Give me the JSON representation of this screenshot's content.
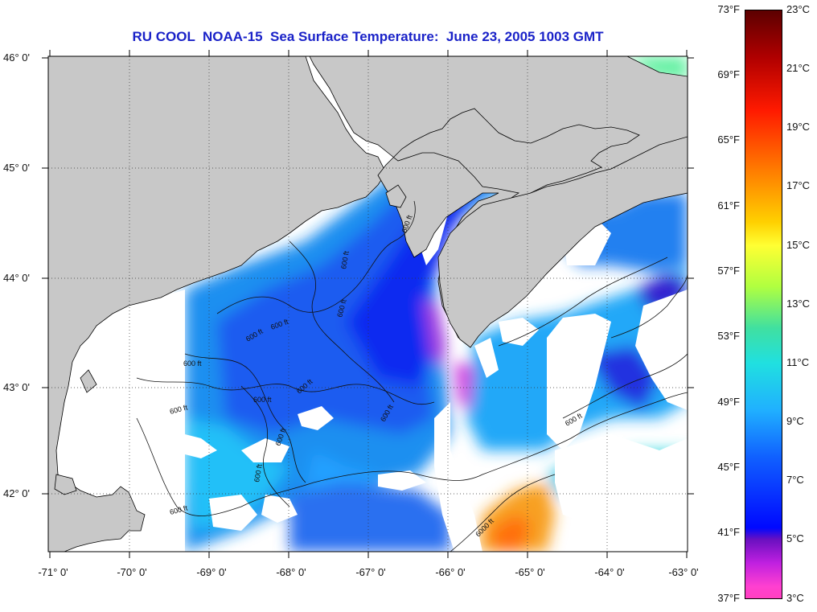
{
  "title": "RU COOL  NOAA-15  Sea Surface Temperature:  June 23, 2005 1003 GMT",
  "map": {
    "lon_range": [
      -71,
      -63
    ],
    "lat_range": [
      41.5,
      46.1
    ],
    "lat_ticks": [
      "46° 0'",
      "45° 0'",
      "44° 0'",
      "43° 0'",
      "42° 0'"
    ],
    "lon_ticks": [
      "-71° 0'",
      "-70° 0'",
      "-69° 0'",
      "-68° 0'",
      "-67° 0'",
      "-66° 0'",
      "-65° 0'",
      "-64° 0'",
      "-63° 0'"
    ],
    "grid": true,
    "contour_labels": [
      "600 ft",
      "600 ft",
      "600 ft",
      "600 ft",
      "600 ft",
      "600 ft",
      "600 ft",
      "600 ft",
      "600 ft",
      "600 ft",
      "600 ft",
      "600 ft",
      "600 ft",
      "6000 ft",
      "600 ft"
    ],
    "colors": {
      "land": "#c8c8c8",
      "cloud": "#ffffff",
      "frame": "#000000"
    }
  },
  "colorbar": {
    "fahrenheit": [
      "73°F",
      "69°F",
      "65°F",
      "61°F",
      "57°F",
      "53°F",
      "49°F",
      "45°F",
      "41°F",
      "37°F"
    ],
    "celsius": [
      "23°C",
      "21°C",
      "19°C",
      "17°C",
      "15°C",
      "13°C",
      "11°C",
      "9°C",
      "7°C",
      "5°C",
      "3°C"
    ]
  }
}
